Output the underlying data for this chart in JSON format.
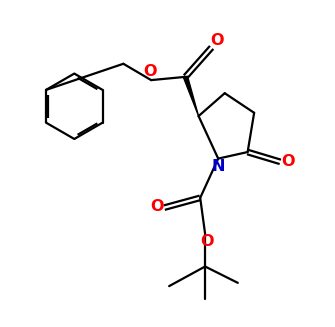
{
  "bg_color": "#ffffff",
  "bond_color": "#000000",
  "o_color": "#ff0000",
  "n_color": "#0000cc",
  "line_width": 1.6,
  "font_size": 11.5,
  "fig_width": 3.35,
  "fig_height": 3.27,
  "dpi": 100,
  "xlim": [
    0,
    10
  ],
  "ylim": [
    0,
    10
  ]
}
